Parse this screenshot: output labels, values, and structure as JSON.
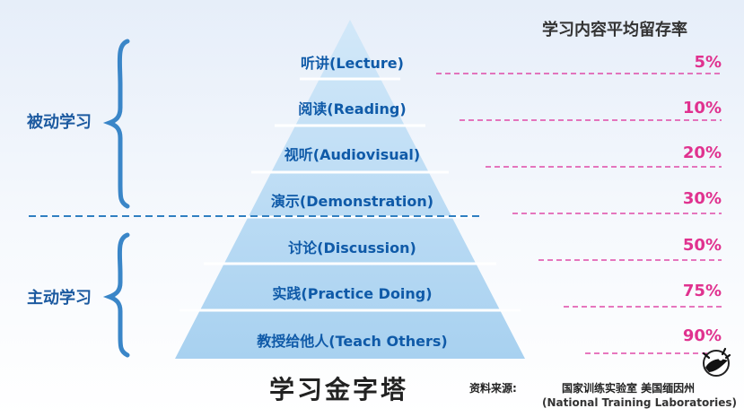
{
  "heading": "学习内容平均留存率",
  "groups": {
    "passive": "被动学习",
    "active": "主动学习"
  },
  "layers": [
    {
      "label": "听讲(Lecture)",
      "rate": "5%"
    },
    {
      "label": "阅读(Reading)",
      "rate": "10%"
    },
    {
      "label": "视听(Audiovisual)",
      "rate": "20%"
    },
    {
      "label": "演示(Demonstration)",
      "rate": "30%"
    },
    {
      "label": "讨论(Discussion)",
      "rate": "50%"
    },
    {
      "label": "实践(Practice Doing)",
      "rate": "75%"
    },
    {
      "label": "教授给他人(Teach Others)",
      "rate": "90%"
    }
  ],
  "title": "学习金字塔",
  "source": {
    "label": "资料来源:",
    "org": "国家训练实验室 美国缅因州",
    "org_en": "(National Training Laboratories)"
  },
  "colors": {
    "pyramid_top": "#cfe6f8",
    "pyramid_bottom": "#a9d2f0",
    "label_text": "#0f5aa8",
    "percent": "#e0328f",
    "dashed_line": "#e04aa8",
    "divider": "#2f7fc1",
    "brace": "#3a86c8"
  }
}
